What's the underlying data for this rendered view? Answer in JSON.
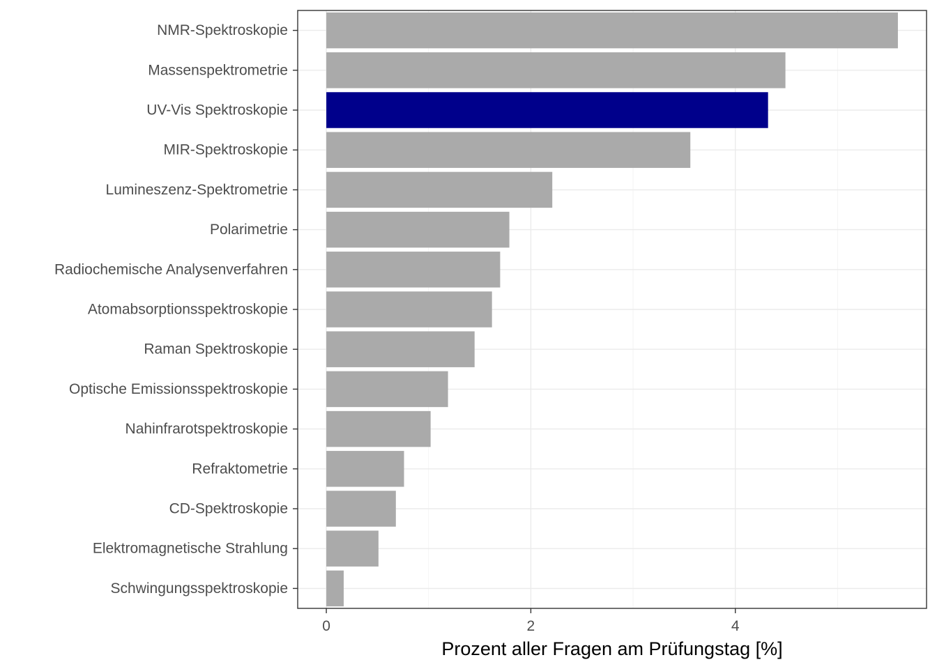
{
  "chart_data": {
    "type": "bar",
    "orientation": "horizontal",
    "categories": [
      "NMR-Spektroskopie",
      "Massenspektrometrie",
      "UV-Vis Spektroskopie",
      "MIR-Spektroskopie",
      "Lumineszenz-Spektrometrie",
      "Polarimetrie",
      "Radiochemische Analysenverfahren",
      "Atomabsorptionsspektroskopie",
      "Raman Spektroskopie",
      "Optische Emissionsspektroskopie",
      "Nahinfrarotspektroskopie",
      "Refraktometrie",
      "CD-Spektroskopie",
      "Elektromagnetische Strahlung",
      "Schwingungsspektroskopie"
    ],
    "values": [
      5.59,
      4.49,
      4.32,
      3.56,
      2.21,
      1.79,
      1.7,
      1.62,
      1.45,
      1.19,
      1.02,
      0.76,
      0.68,
      0.51,
      0.17
    ],
    "highlight": "UV-Vis Spektroskopie",
    "colors": {
      "default": "#aaaaaa",
      "highlight": "#00008b"
    },
    "xlabel": "Prozent aller Fragen am Prüfungstag [%]",
    "ylabel": "",
    "title": "",
    "xlim": [
      -0.28,
      5.87
    ],
    "x_ticks": [
      0,
      2,
      4
    ],
    "x_tick_labels": [
      "0",
      "2",
      "4"
    ],
    "x_minor_ticks": [
      1,
      3,
      5
    ],
    "grid": true,
    "legend": "none"
  }
}
